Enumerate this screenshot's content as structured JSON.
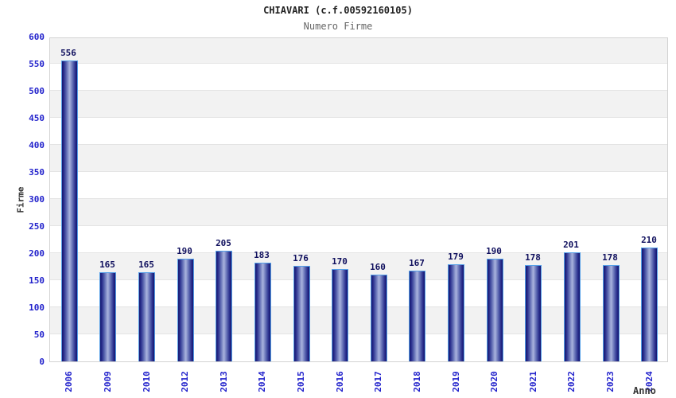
{
  "chart_data": {
    "type": "bar",
    "title": "CHIAVARI (c.f.00592160105)",
    "subtitle": "Numero Firme",
    "xlabel": "Anno",
    "ylabel": "Firme",
    "categories": [
      "2006",
      "2009",
      "2010",
      "2012",
      "2013",
      "2014",
      "2015",
      "2016",
      "2017",
      "2018",
      "2019",
      "2020",
      "2021",
      "2022",
      "2023",
      "2024"
    ],
    "values": [
      556,
      165,
      165,
      190,
      205,
      183,
      176,
      170,
      160,
      167,
      179,
      190,
      178,
      201,
      178,
      210
    ],
    "ylim": [
      0,
      600
    ],
    "ytick_step": 50,
    "grid": true,
    "legend": "none",
    "band_colors": [
      "#ffffff",
      "#f2f2f2"
    ],
    "colors": {
      "bar_dark": "#14146e",
      "bar_light": "#aab4de",
      "bar_border": "#55a0e8",
      "tick_label": "#2323cc",
      "value_label": "#10105e",
      "axis_label": "#333333",
      "title": "#222222",
      "subtitle": "#666666",
      "gridline": "#e4e4e4"
    }
  }
}
